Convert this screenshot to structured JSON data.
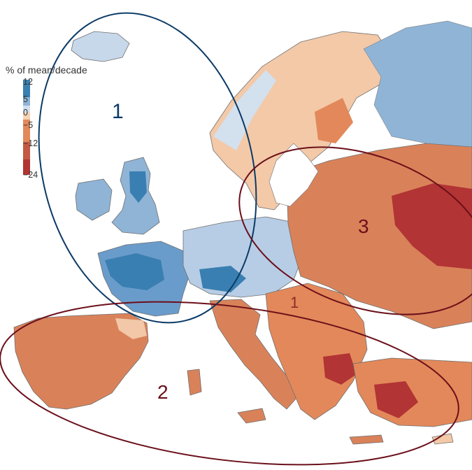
{
  "legend": {
    "title": "% of mean/decade",
    "ticks": [
      "12",
      "5",
      "0",
      "−5",
      "−12",
      "−24"
    ],
    "colors": [
      "#3a7fb1",
      "#8fb4d6",
      "#d3e0ee",
      "#f6d2b4",
      "#e3885a",
      "#c35943",
      "#b23434"
    ]
  },
  "regions": [
    {
      "label": "1",
      "outline_color": "#0b3a66",
      "trend": "wetting"
    },
    {
      "label": "2",
      "outline_color": "#6b0f1a",
      "trend": "drying"
    },
    {
      "label": "3",
      "outline_color": "#6b0f1a",
      "trend": "drying"
    }
  ],
  "inner_marker": {
    "label": "1",
    "color": "#8c2a2a"
  },
  "colors": {
    "sea": "#ffffff",
    "border": "#6f6f6f",
    "river": "#a9c6e3",
    "wet_strong": "#3a7fb1",
    "wet": "#8fb4d6",
    "neutral_wet": "#d3e0ee",
    "neutral_dry": "#f6d2b4",
    "dry": "#e3885a",
    "dry_strong": "#c35943",
    "dry_extreme": "#b23434"
  }
}
